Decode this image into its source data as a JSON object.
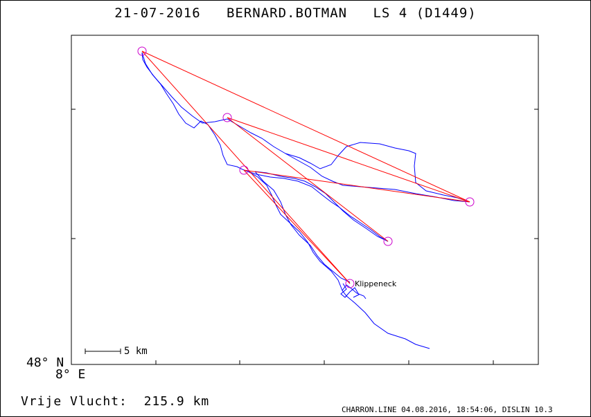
{
  "header": {
    "date": "21-07-2016",
    "pilot": "BERNARD.BOTMAN",
    "glider": "LS 4 (D1449)"
  },
  "axes": {
    "lat_label": "48° N",
    "lon_label": "8° E"
  },
  "scale_bar": {
    "label": "5 km"
  },
  "waypoint_label": "Klippeneck",
  "distance": {
    "label": "Vrije Vlucht:",
    "value": "215.9 km"
  },
  "footer": "CHARRON.LINE 04.08.2016, 18:54:06, DISLIN 10.3",
  "colors": {
    "track": "#0000ff",
    "task_line": "#ff0000",
    "turnpoint": "#cc00cc"
  }
}
